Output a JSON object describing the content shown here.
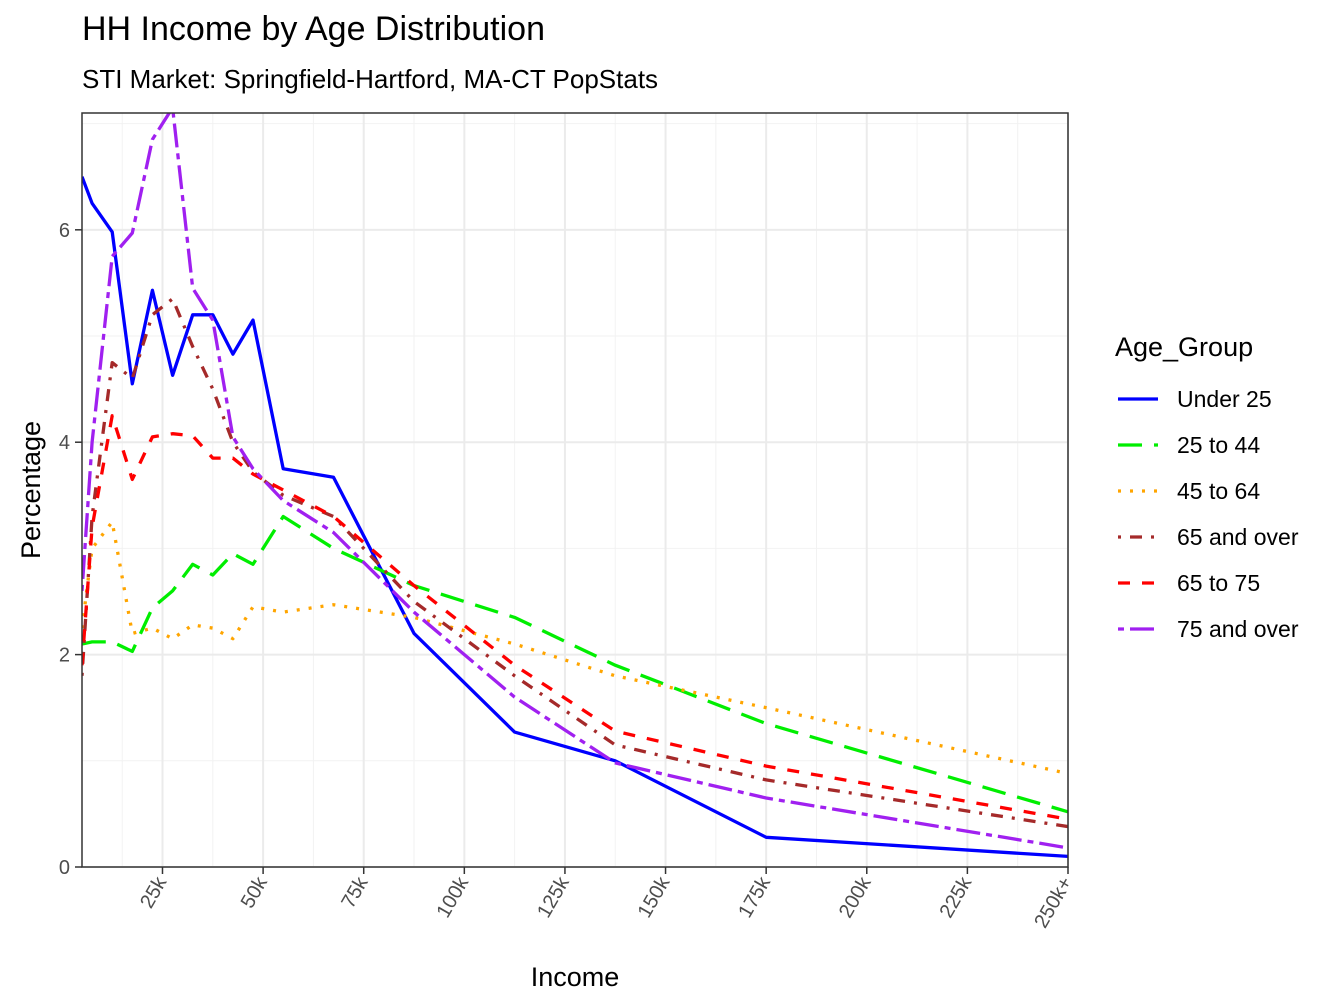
{
  "chart_data": {
    "type": "line",
    "title": "HH Income by Age Distribution",
    "subtitle": "STI Market: Springfield-Hartford, MA-CT PopStats",
    "xlabel": "Income",
    "ylabel": "Percentage",
    "xlim": [
      5,
      250
    ],
    "ylim": [
      0,
      7.1
    ],
    "x_ticks": [
      {
        "value": 25,
        "label": "25k"
      },
      {
        "value": 50,
        "label": "50k"
      },
      {
        "value": 75,
        "label": "75k"
      },
      {
        "value": 100,
        "label": "100k"
      },
      {
        "value": 125,
        "label": "125k"
      },
      {
        "value": 150,
        "label": "150k"
      },
      {
        "value": 175,
        "label": "175k"
      },
      {
        "value": 200,
        "label": "200k"
      },
      {
        "value": 225,
        "label": "225k"
      },
      {
        "value": 250,
        "label": "250k+"
      }
    ],
    "y_ticks": [
      0,
      2,
      4,
      6
    ],
    "grid": true,
    "legend": {
      "title": "Age_Group",
      "position": "right"
    },
    "x": [
      5,
      7.5,
      12.5,
      17.5,
      22.5,
      27.5,
      32.5,
      37.5,
      42.5,
      47.5,
      55,
      67.5,
      87.5,
      112.5,
      137.5,
      175,
      250
    ],
    "series": [
      {
        "name": "Under 25",
        "color": "#0000ff",
        "dash": "solid",
        "values": [
          6.5,
          6.25,
          5.98,
          4.55,
          5.43,
          4.63,
          5.2,
          5.2,
          4.83,
          5.15,
          3.75,
          3.67,
          2.2,
          1.27,
          1.0,
          0.28,
          0.1
        ]
      },
      {
        "name": "25 to 44",
        "color": "#00ee00",
        "dash": "longdash",
        "values": [
          2.1,
          2.12,
          2.12,
          2.03,
          2.44,
          2.6,
          2.85,
          2.75,
          2.95,
          2.85,
          3.3,
          3.0,
          2.65,
          2.35,
          1.9,
          1.35,
          0.52
        ]
      },
      {
        "name": "45 to 64",
        "color": "#ffa500",
        "dash": "dotted",
        "values": [
          2.25,
          3.0,
          3.25,
          2.2,
          2.25,
          2.15,
          2.28,
          2.25,
          2.15,
          2.45,
          2.4,
          2.47,
          2.35,
          2.1,
          1.8,
          1.5,
          0.88
        ]
      },
      {
        "name": "65 and over",
        "color": "#a52a2a",
        "dash": "dotdash",
        "values": [
          1.8,
          3.3,
          4.75,
          4.6,
          5.2,
          5.35,
          4.9,
          4.5,
          4.0,
          3.72,
          3.5,
          3.3,
          2.5,
          1.8,
          1.15,
          0.82,
          0.38
        ]
      },
      {
        "name": "65 to 75",
        "color": "#ff0000",
        "dash": "dashed",
        "values": [
          1.9,
          3.2,
          4.25,
          3.65,
          4.05,
          4.08,
          4.06,
          3.85,
          3.85,
          3.7,
          3.55,
          3.3,
          2.65,
          1.9,
          1.28,
          0.95,
          0.45
        ]
      },
      {
        "name": "75 and over",
        "color": "#a020f0",
        "dash": "twodash",
        "values": [
          2.6,
          4.0,
          5.75,
          5.97,
          6.85,
          7.15,
          5.45,
          5.15,
          4.05,
          3.75,
          3.45,
          3.15,
          2.4,
          1.6,
          0.98,
          0.65,
          0.18
        ]
      }
    ]
  }
}
